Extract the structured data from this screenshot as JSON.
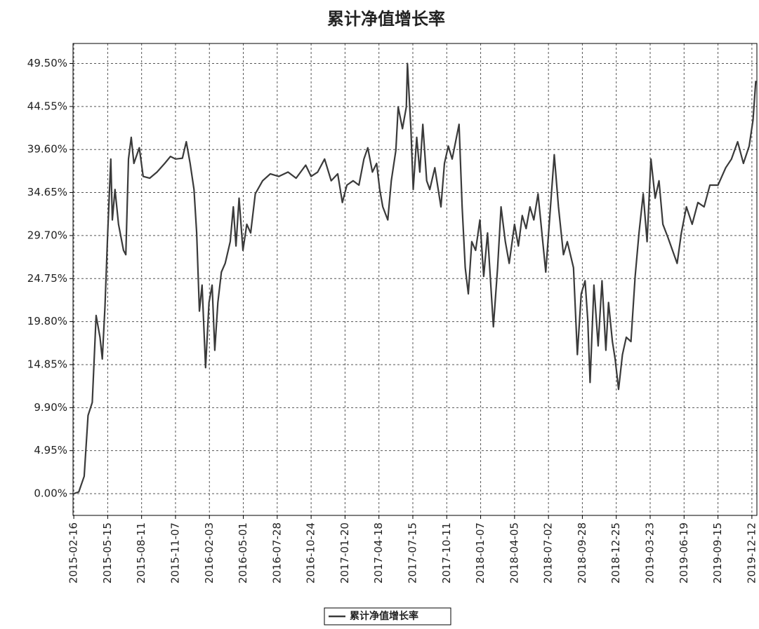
{
  "chart_data": {
    "type": "line",
    "title": "累计净值增长率",
    "series": [
      {
        "name": "累计净值增长率",
        "color": "#3a3a3a",
        "x": [
          "2015-02-16",
          "2015-03-01",
          "2015-03-15",
          "2015-03-25",
          "2015-04-05",
          "2015-04-15",
          "2015-04-25",
          "2015-05-01",
          "2015-05-08",
          "2015-05-15",
          "2015-05-23",
          "2015-05-27",
          "2015-06-03",
          "2015-06-12",
          "2015-06-25",
          "2015-07-01",
          "2015-07-08",
          "2015-07-15",
          "2015-07-22",
          "2015-08-05",
          "2015-08-15",
          "2015-09-01",
          "2015-09-20",
          "2015-10-10",
          "2015-10-25",
          "2015-11-07",
          "2015-11-25",
          "2015-12-05",
          "2015-12-15",
          "2015-12-25",
          "2016-01-01",
          "2016-01-08",
          "2016-01-15",
          "2016-01-24",
          "2016-02-02",
          "2016-02-10",
          "2016-02-17",
          "2016-02-25",
          "2016-03-05",
          "2016-03-15",
          "2016-03-28",
          "2016-04-05",
          "2016-04-12",
          "2016-04-20",
          "2016-04-30",
          "2016-05-10",
          "2016-05-20",
          "2016-06-01",
          "2016-06-20",
          "2016-07-10",
          "2016-08-01",
          "2016-08-25",
          "2016-09-15",
          "2016-10-10",
          "2016-10-24",
          "2016-11-10",
          "2016-11-28",
          "2016-12-15",
          "2017-01-01",
          "2017-01-13",
          "2017-01-25",
          "2017-02-10",
          "2017-02-25",
          "2017-03-10",
          "2017-03-20",
          "2017-04-01",
          "2017-04-12",
          "2017-04-20",
          "2017-04-28",
          "2017-05-11",
          "2017-05-20",
          "2017-06-01",
          "2017-06-07",
          "2017-06-18",
          "2017-06-28",
          "2017-07-01",
          "2017-07-10",
          "2017-07-16",
          "2017-07-25",
          "2017-08-02",
          "2017-08-10",
          "2017-08-20",
          "2017-08-28",
          "2017-09-10",
          "2017-09-26",
          "2017-10-05",
          "2017-10-15",
          "2017-10-25",
          "2017-11-12",
          "2017-11-20",
          "2017-11-28",
          "2017-12-06",
          "2017-12-15",
          "2017-12-25",
          "2018-01-05",
          "2018-01-15",
          "2018-01-25",
          "2018-02-09",
          "2018-02-20",
          "2018-03-01",
          "2018-03-12",
          "2018-03-22",
          "2018-04-05",
          "2018-04-15",
          "2018-04-25",
          "2018-05-05",
          "2018-05-15",
          "2018-05-25",
          "2018-06-05",
          "2018-06-25",
          "2018-07-17",
          "2018-07-28",
          "2018-08-10",
          "2018-08-20",
          "2018-09-05",
          "2018-09-15",
          "2018-09-25",
          "2018-10-05",
          "2018-10-12",
          "2018-10-18",
          "2018-10-28",
          "2018-11-08",
          "2018-11-18",
          "2018-11-28",
          "2018-12-05",
          "2018-12-15",
          "2018-12-22",
          "2018-12-31",
          "2019-01-10",
          "2019-01-20",
          "2019-02-01",
          "2019-02-12",
          "2019-02-22",
          "2019-03-05",
          "2019-03-15",
          "2019-03-25",
          "2019-04-05",
          "2019-04-15",
          "2019-04-25",
          "2019-05-08",
          "2019-05-20",
          "2019-06-01",
          "2019-06-12",
          "2019-06-25",
          "2019-07-10",
          "2019-07-25",
          "2019-08-10",
          "2019-08-25",
          "2019-09-15",
          "2019-10-05",
          "2019-10-20",
          "2019-11-05",
          "2019-11-20",
          "2019-12-05",
          "2019-12-15",
          "2019-12-22"
        ],
        "values": [
          0,
          0.2,
          2.0,
          9.0,
          10.5,
          20.5,
          18.0,
          15.5,
          21.5,
          30.0,
          38.5,
          31.5,
          35.0,
          31.0,
          28.0,
          27.5,
          38.5,
          41.0,
          38.0,
          39.8,
          36.5,
          36.3,
          37.0,
          38.0,
          38.8,
          38.5,
          38.6,
          40.5,
          38.0,
          35.0,
          30.0,
          21.0,
          24.0,
          14.5,
          22.0,
          24.0,
          16.5,
          22.0,
          25.5,
          26.5,
          29.0,
          33.0,
          28.5,
          34.0,
          28.0,
          31.0,
          30.0,
          34.5,
          36.0,
          36.8,
          36.5,
          37.0,
          36.3,
          37.8,
          36.5,
          37.0,
          38.5,
          36.0,
          36.8,
          33.5,
          35.5,
          36.0,
          35.5,
          38.5,
          39.8,
          37.0,
          38.0,
          35.0,
          33.0,
          31.5,
          36.0,
          39.5,
          44.5,
          42.0,
          44.5,
          49.5,
          42.0,
          35.0,
          41.0,
          37.0,
          42.5,
          36.0,
          35.0,
          37.5,
          33.0,
          38.0,
          40.0,
          38.5,
          42.5,
          33.0,
          26.0,
          23.0,
          29.0,
          28.0,
          31.5,
          25.0,
          30.0,
          19.2,
          26.0,
          33.0,
          29.0,
          26.5,
          31.0,
          28.5,
          32.0,
          30.5,
          33.0,
          31.5,
          34.5,
          25.5,
          39.0,
          33.0,
          27.5,
          29.0,
          26.0,
          16.0,
          23.0,
          24.5,
          20.0,
          12.8,
          24.0,
          17.0,
          24.5,
          16.5,
          22.0,
          17.5,
          15.5,
          12.0,
          16.0,
          18.0,
          17.5,
          25.0,
          30.0,
          34.5,
          29.0,
          38.5,
          34.0,
          36.0,
          31.0,
          29.5,
          28.0,
          26.5,
          30.0,
          33.0,
          31.0,
          33.5,
          33.0,
          35.5,
          35.5,
          37.5,
          38.5,
          40.5,
          38.0,
          40.0,
          43.0,
          47.5
        ]
      }
    ],
    "xlim": [
      "2015-02-14",
      "2019-12-25"
    ],
    "xticks": [
      "2015-02-16",
      "2015-05-15",
      "2015-08-11",
      "2015-11-07",
      "2016-02-03",
      "2016-05-01",
      "2016-07-28",
      "2016-10-24",
      "2017-01-20",
      "2017-04-18",
      "2017-07-15",
      "2017-10-11",
      "2018-01-07",
      "2018-04-05",
      "2018-07-02",
      "2018-09-28",
      "2018-12-25",
      "2019-03-23",
      "2019-06-19",
      "2019-09-15",
      "2019-12-12"
    ],
    "ylim": [
      -2.5,
      51.8
    ],
    "yticks": [
      {
        "value": 0,
        "label": "0.00%"
      },
      {
        "value": 4.95,
        "label": "4.95%"
      },
      {
        "value": 9.9,
        "label": "9.90%"
      },
      {
        "value": 14.85,
        "label": "14.85%"
      },
      {
        "value": 19.8,
        "label": "19.80%"
      },
      {
        "value": 24.75,
        "label": "24.75%"
      },
      {
        "value": 29.7,
        "label": "29.70%"
      },
      {
        "value": 34.65,
        "label": "34.65%"
      },
      {
        "value": 39.6,
        "label": "39.60%"
      },
      {
        "value": 44.55,
        "label": "44.55%"
      },
      {
        "value": 49.5,
        "label": "49.50%"
      }
    ],
    "grid": true,
    "legend": "bottom"
  }
}
